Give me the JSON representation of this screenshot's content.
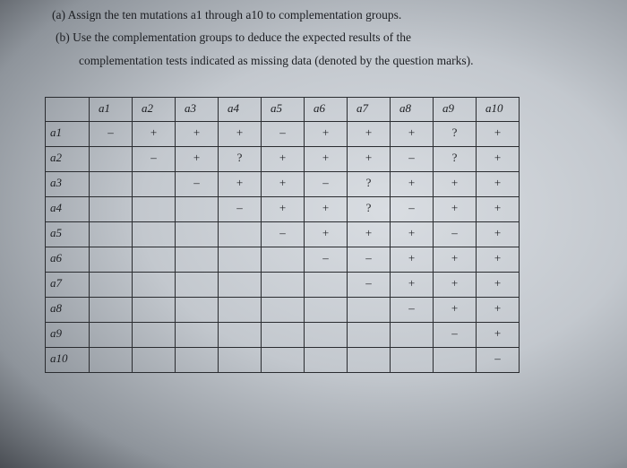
{
  "instructions": [
    "(a) Assign the ten mutations a1 through a10 to complementation groups.",
    "(b) Use the complementation groups to deduce the expected results of the",
    "complementation tests indicated as missing data (denoted by the question marks)."
  ],
  "table": {
    "columns": [
      "a1",
      "a2",
      "a3",
      "a4",
      "a5",
      "a6",
      "a7",
      "a8",
      "a9",
      "a10"
    ],
    "rows": [
      {
        "label": "a1",
        "cells": [
          "–",
          "+",
          "+",
          "+",
          "–",
          "+",
          "+",
          "+",
          "?",
          "+"
        ]
      },
      {
        "label": "a2",
        "cells": [
          "",
          "–",
          "+",
          "?",
          "+",
          "+",
          "+",
          "–",
          "?",
          "+"
        ]
      },
      {
        "label": "a3",
        "cells": [
          "",
          "",
          "–",
          "+",
          "+",
          "–",
          "?",
          "+",
          "+",
          "+"
        ]
      },
      {
        "label": "a4",
        "cells": [
          "",
          "",
          "",
          "–",
          "+",
          "+",
          "?",
          "–",
          "+",
          "+"
        ]
      },
      {
        "label": "a5",
        "cells": [
          "",
          "",
          "",
          "",
          "–",
          "+",
          "+",
          "+",
          "–",
          "+"
        ]
      },
      {
        "label": "a6",
        "cells": [
          "",
          "",
          "",
          "",
          "",
          "–",
          "–",
          "+",
          "+",
          "+"
        ]
      },
      {
        "label": "a7",
        "cells": [
          "",
          "",
          "",
          "",
          "",
          "",
          "–",
          "+",
          "+",
          "+"
        ]
      },
      {
        "label": "a8",
        "cells": [
          "",
          "",
          "",
          "",
          "",
          "",
          "",
          "–",
          "+",
          "+"
        ]
      },
      {
        "label": "a9",
        "cells": [
          "",
          "",
          "",
          "",
          "",
          "",
          "",
          "",
          "–",
          "+"
        ]
      },
      {
        "label": "a10",
        "cells": [
          "",
          "",
          "",
          "",
          "",
          "",
          "",
          "",
          "",
          "–"
        ]
      }
    ]
  }
}
